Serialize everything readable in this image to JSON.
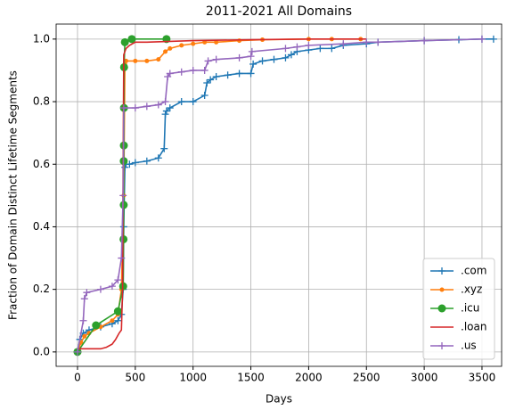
{
  "chart_data": {
    "type": "line",
    "title": "2011-2021 All Domains",
    "xlabel": "Days",
    "ylabel": "Fraction of Domain Distinct Lifetime Segments",
    "xlim": [
      -185,
      3670
    ],
    "ylim": [
      -0.046,
      1.048
    ],
    "xticks": [
      0,
      500,
      1000,
      1500,
      2000,
      2500,
      3000,
      3500
    ],
    "yticks": [
      {
        "value": 0,
        "label": "0.0"
      },
      {
        "value": 0.2,
        "label": "0.2"
      },
      {
        "value": 0.4,
        "label": "0.4"
      },
      {
        "value": 0.6,
        "label": "0.6"
      },
      {
        "value": 0.8,
        "label": "0.8"
      },
      {
        "value": 1,
        "label": "1.0"
      }
    ],
    "grid": true,
    "legend": "lower right",
    "series": [
      {
        "name": ".com",
        "color": "#1f77b4",
        "marker": "plus",
        "x": [
          0,
          20,
          50,
          100,
          200,
          300,
          350,
          380,
          395,
          400,
          410,
          420,
          450,
          500,
          600,
          700,
          750,
          760,
          770,
          800,
          900,
          1000,
          1100,
          1120,
          1150,
          1200,
          1300,
          1400,
          1500,
          1520,
          1600,
          1700,
          1800,
          1850,
          1900,
          2000,
          2100,
          2200,
          2300,
          2500,
          2600,
          3000,
          3300,
          3500,
          3600
        ],
        "values": [
          0.0,
          0.04,
          0.06,
          0.07,
          0.08,
          0.09,
          0.1,
          0.12,
          0.2,
          0.4,
          0.59,
          0.6,
          0.6,
          0.605,
          0.61,
          0.62,
          0.65,
          0.76,
          0.77,
          0.78,
          0.8,
          0.8,
          0.82,
          0.86,
          0.87,
          0.88,
          0.885,
          0.89,
          0.89,
          0.92,
          0.93,
          0.935,
          0.94,
          0.95,
          0.96,
          0.965,
          0.97,
          0.97,
          0.98,
          0.985,
          0.99,
          0.995,
          0.998,
          1.0,
          1.0
        ]
      },
      {
        "name": ".xyz",
        "color": "#ff7f0e",
        "marker": "dot",
        "x": [
          0,
          30,
          60,
          100,
          200,
          300,
          350,
          380,
          400,
          410,
          420,
          500,
          600,
          700,
          760,
          800,
          900,
          1000,
          1100,
          1200,
          1400,
          1600,
          2000,
          2200,
          2450
        ],
        "values": [
          0.0,
          0.03,
          0.05,
          0.06,
          0.08,
          0.1,
          0.12,
          0.2,
          0.5,
          0.92,
          0.93,
          0.93,
          0.93,
          0.935,
          0.96,
          0.97,
          0.98,
          0.985,
          0.99,
          0.99,
          0.995,
          0.998,
          1.0,
          1.0,
          1.0
        ]
      },
      {
        "name": ".icu",
        "color": "#2ca02c",
        "marker": "circle",
        "x": [
          0,
          160,
          350,
          395,
          398,
          400,
          400,
          401,
          402,
          403,
          410,
          470,
          770
        ],
        "values": [
          0.0,
          0.085,
          0.13,
          0.21,
          0.36,
          0.47,
          0.61,
          0.66,
          0.78,
          0.91,
          0.99,
          1.0,
          1.0
        ]
      },
      {
        "name": ".loan",
        "color": "#d62728",
        "marker": "none",
        "x": [
          0,
          200,
          250,
          300,
          330,
          360,
          380,
          390,
          395,
          400,
          420,
          450,
          500,
          600,
          1000,
          1500,
          2000,
          2500
        ],
        "values": [
          0.01,
          0.01,
          0.015,
          0.025,
          0.04,
          0.06,
          0.07,
          0.2,
          0.6,
          0.95,
          0.97,
          0.98,
          0.99,
          0.99,
          0.995,
          0.998,
          1.0,
          1.0
        ]
      },
      {
        "name": ".us",
        "color": "#9467bd",
        "marker": "plus",
        "x": [
          0,
          50,
          60,
          80,
          200,
          300,
          350,
          380,
          395,
          400,
          500,
          600,
          700,
          760,
          780,
          800,
          900,
          1000,
          1100,
          1130,
          1200,
          1400,
          1500,
          1510,
          1800,
          1900,
          2000,
          2300,
          2500,
          2600,
          3000,
          3500
        ],
        "values": [
          0.0,
          0.1,
          0.17,
          0.19,
          0.2,
          0.21,
          0.23,
          0.3,
          0.5,
          0.78,
          0.78,
          0.785,
          0.79,
          0.8,
          0.88,
          0.89,
          0.895,
          0.9,
          0.9,
          0.93,
          0.935,
          0.94,
          0.945,
          0.96,
          0.97,
          0.975,
          0.98,
          0.985,
          0.99,
          0.99,
          0.995,
          1.0
        ]
      }
    ]
  }
}
